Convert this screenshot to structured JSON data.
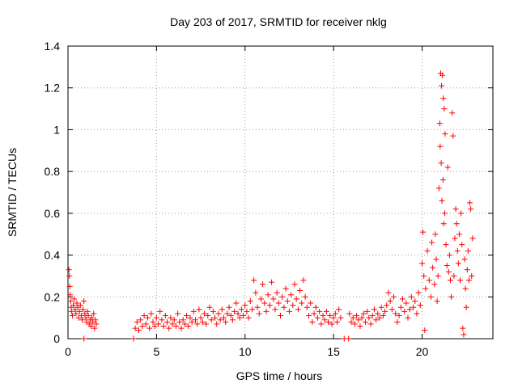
{
  "chart_data": {
    "type": "scatter",
    "title": "Day 203 of 2017, SRMTID for receiver nklg",
    "xlabel": "GPS time / hours",
    "ylabel": "SRMTID / TECUs",
    "xlim": [
      0,
      24
    ],
    "ylim": [
      0,
      1.4
    ],
    "xticks": [
      0,
      5,
      10,
      15,
      20
    ],
    "yticks": [
      0,
      0.2,
      0.4,
      0.6,
      0.8,
      1,
      1.2,
      1.4
    ],
    "xtick_labels": [
      "0",
      "5",
      "10",
      "15",
      "20"
    ],
    "ytick_labels": [
      "0",
      "0.2",
      "0.4",
      "0.6",
      "0.8",
      "1",
      "1.2",
      "1.4"
    ],
    "grid": true,
    "marker": "+",
    "color": "#ff0000",
    "series": [
      {
        "name": "SRMTID",
        "points": [
          [
            0.05,
            0.33
          ],
          [
            0.08,
            0.3
          ],
          [
            0.1,
            0.25
          ],
          [
            0.12,
            0.21
          ],
          [
            0.15,
            0.18
          ],
          [
            0.18,
            0.15
          ],
          [
            0.2,
            0.13
          ],
          [
            0.25,
            0.11
          ],
          [
            0.3,
            0.16
          ],
          [
            0.35,
            0.19
          ],
          [
            0.4,
            0.14
          ],
          [
            0.45,
            0.12
          ],
          [
            0.5,
            0.17
          ],
          [
            0.55,
            0.15
          ],
          [
            0.6,
            0.1
          ],
          [
            0.65,
            0.13
          ],
          [
            0.7,
            0.16
          ],
          [
            0.75,
            0.11
          ],
          [
            0.8,
            0.09
          ],
          [
            0.85,
            0.14
          ],
          [
            0.9,
            0.18
          ],
          [
            0.95,
            0.12
          ],
          [
            1.0,
            0.1
          ],
          [
            1.05,
            0.08
          ],
          [
            1.1,
            0.13
          ],
          [
            1.15,
            0.11
          ],
          [
            1.2,
            0.07
          ],
          [
            1.25,
            0.09
          ],
          [
            1.3,
            0.06
          ],
          [
            1.35,
            0.1
          ],
          [
            1.4,
            0.08
          ],
          [
            1.45,
            0.12
          ],
          [
            1.5,
            0.05
          ],
          [
            1.55,
            0.09
          ],
          [
            1.6,
            0.07
          ],
          [
            0.9,
            0.0
          ],
          [
            3.7,
            0.0
          ],
          [
            15.6,
            0.0
          ],
          [
            15.85,
            0.0
          ],
          [
            3.8,
            0.05
          ],
          [
            3.9,
            0.08
          ],
          [
            4.0,
            0.04
          ],
          [
            4.1,
            0.09
          ],
          [
            4.2,
            0.06
          ],
          [
            4.3,
            0.11
          ],
          [
            4.4,
            0.07
          ],
          [
            4.5,
            0.1
          ],
          [
            4.6,
            0.05
          ],
          [
            4.7,
            0.12
          ],
          [
            4.8,
            0.08
          ],
          [
            4.9,
            0.06
          ],
          [
            5.0,
            0.1
          ],
          [
            5.1,
            0.07
          ],
          [
            5.2,
            0.13
          ],
          [
            5.3,
            0.09
          ],
          [
            5.4,
            0.06
          ],
          [
            5.5,
            0.11
          ],
          [
            5.6,
            0.08
          ],
          [
            5.7,
            0.05
          ],
          [
            5.8,
            0.1
          ],
          [
            5.9,
            0.07
          ],
          [
            6.0,
            0.09
          ],
          [
            6.1,
            0.06
          ],
          [
            6.2,
            0.12
          ],
          [
            6.3,
            0.08
          ],
          [
            6.4,
            0.05
          ],
          [
            6.5,
            0.09
          ],
          [
            6.6,
            0.07
          ],
          [
            6.7,
            0.11
          ],
          [
            6.8,
            0.06
          ],
          [
            6.9,
            0.1
          ],
          [
            7.0,
            0.08
          ],
          [
            7.1,
            0.13
          ],
          [
            7.2,
            0.09
          ],
          [
            7.3,
            0.07
          ],
          [
            7.4,
            0.14
          ],
          [
            7.5,
            0.1
          ],
          [
            7.6,
            0.08
          ],
          [
            7.7,
            0.12
          ],
          [
            7.8,
            0.07
          ],
          [
            7.9,
            0.11
          ],
          [
            8.0,
            0.15
          ],
          [
            8.1,
            0.09
          ],
          [
            8.2,
            0.13
          ],
          [
            8.3,
            0.1
          ],
          [
            8.4,
            0.07
          ],
          [
            8.5,
            0.12
          ],
          [
            8.6,
            0.09
          ],
          [
            8.7,
            0.14
          ],
          [
            8.8,
            0.1
          ],
          [
            8.9,
            0.08
          ],
          [
            9.0,
            0.12
          ],
          [
            9.1,
            0.15
          ],
          [
            9.2,
            0.11
          ],
          [
            9.3,
            0.09
          ],
          [
            9.4,
            0.13
          ],
          [
            9.5,
            0.17
          ],
          [
            9.6,
            0.12
          ],
          [
            9.7,
            0.1
          ],
          [
            9.8,
            0.14
          ],
          [
            9.9,
            0.11
          ],
          [
            10.0,
            0.16
          ],
          [
            10.1,
            0.13
          ],
          [
            10.2,
            0.1
          ],
          [
            10.3,
            0.18
          ],
          [
            10.4,
            0.14
          ],
          [
            10.5,
            0.28
          ],
          [
            10.6,
            0.22
          ],
          [
            10.7,
            0.15
          ],
          [
            10.8,
            0.12
          ],
          [
            10.9,
            0.19
          ],
          [
            11.0,
            0.26
          ],
          [
            11.1,
            0.17
          ],
          [
            11.2,
            0.13
          ],
          [
            11.3,
            0.21
          ],
          [
            11.4,
            0.16
          ],
          [
            11.5,
            0.27
          ],
          [
            11.6,
            0.19
          ],
          [
            11.7,
            0.14
          ],
          [
            11.8,
            0.22
          ],
          [
            11.9,
            0.17
          ],
          [
            12.0,
            0.11
          ],
          [
            12.1,
            0.2
          ],
          [
            12.2,
            0.15
          ],
          [
            12.3,
            0.24
          ],
          [
            12.4,
            0.18
          ],
          [
            12.5,
            0.13
          ],
          [
            12.6,
            0.21
          ],
          [
            12.7,
            0.16
          ],
          [
            12.8,
            0.26
          ],
          [
            12.9,
            0.19
          ],
          [
            13.0,
            0.14
          ],
          [
            13.1,
            0.23
          ],
          [
            13.2,
            0.17
          ],
          [
            13.3,
            0.28
          ],
          [
            13.4,
            0.2
          ],
          [
            13.5,
            0.15
          ],
          [
            13.6,
            0.11
          ],
          [
            13.7,
            0.17
          ],
          [
            13.8,
            0.08
          ],
          [
            13.9,
            0.12
          ],
          [
            14.0,
            0.15
          ],
          [
            14.1,
            0.1
          ],
          [
            14.2,
            0.13
          ],
          [
            14.3,
            0.07
          ],
          [
            14.4,
            0.11
          ],
          [
            14.5,
            0.09
          ],
          [
            14.6,
            0.13
          ],
          [
            14.7,
            0.08
          ],
          [
            14.8,
            0.11
          ],
          [
            14.9,
            0.07
          ],
          [
            15.0,
            0.1
          ],
          [
            15.1,
            0.12
          ],
          [
            15.2,
            0.08
          ],
          [
            15.3,
            0.14
          ],
          [
            15.4,
            0.1
          ],
          [
            15.9,
            0.12
          ],
          [
            16.0,
            0.08
          ],
          [
            16.1,
            0.1
          ],
          [
            16.2,
            0.07
          ],
          [
            16.3,
            0.11
          ],
          [
            16.4,
            0.09
          ],
          [
            16.5,
            0.06
          ],
          [
            16.6,
            0.1
          ],
          [
            16.7,
            0.12
          ],
          [
            16.8,
            0.08
          ],
          [
            16.9,
            0.13
          ],
          [
            17.0,
            0.1
          ],
          [
            17.1,
            0.07
          ],
          [
            17.2,
            0.11
          ],
          [
            17.3,
            0.14
          ],
          [
            17.4,
            0.09
          ],
          [
            17.5,
            0.12
          ],
          [
            17.6,
            0.1
          ],
          [
            17.7,
            0.15
          ],
          [
            17.8,
            0.11
          ],
          [
            17.9,
            0.13
          ],
          [
            18.0,
            0.16
          ],
          [
            18.1,
            0.22
          ],
          [
            18.2,
            0.18
          ],
          [
            18.3,
            0.14
          ],
          [
            18.4,
            0.2
          ],
          [
            18.5,
            0.12
          ],
          [
            18.6,
            0.08
          ],
          [
            18.7,
            0.11
          ],
          [
            18.8,
            0.15
          ],
          [
            18.9,
            0.19
          ],
          [
            19.0,
            0.13
          ],
          [
            19.1,
            0.17
          ],
          [
            19.2,
            0.1
          ],
          [
            19.3,
            0.14
          ],
          [
            19.4,
            0.2
          ],
          [
            19.5,
            0.15
          ],
          [
            19.6,
            0.18
          ],
          [
            19.7,
            0.12
          ],
          [
            19.8,
            0.22
          ],
          [
            19.9,
            0.16
          ],
          [
            20.0,
            0.36
          ],
          [
            20.05,
            0.51
          ],
          [
            20.1,
            0.3
          ],
          [
            20.15,
            0.04
          ],
          [
            20.2,
            0.24
          ],
          [
            20.3,
            0.42
          ],
          [
            20.4,
            0.28
          ],
          [
            20.5,
            0.2
          ],
          [
            20.55,
            0.46
          ],
          [
            20.6,
            0.34
          ],
          [
            20.7,
            0.26
          ],
          [
            20.75,
            0.5
          ],
          [
            20.8,
            0.38
          ],
          [
            20.85,
            0.18
          ],
          [
            20.9,
            0.3
          ],
          [
            20.95,
            0.72
          ],
          [
            21.0,
            1.03
          ],
          [
            21.02,
            0.92
          ],
          [
            21.05,
            1.27
          ],
          [
            21.08,
            0.84
          ],
          [
            21.1,
            1.21
          ],
          [
            21.12,
            0.66
          ],
          [
            21.15,
            1.26
          ],
          [
            21.18,
            0.76
          ],
          [
            21.2,
            1.15
          ],
          [
            21.22,
            0.55
          ],
          [
            21.25,
            1.1
          ],
          [
            21.28,
            0.6
          ],
          [
            21.3,
            0.98
          ],
          [
            21.35,
            0.45
          ],
          [
            21.4,
            0.35
          ],
          [
            21.45,
            0.82
          ],
          [
            21.5,
            0.32
          ],
          [
            21.55,
            0.4
          ],
          [
            21.6,
            0.28
          ],
          [
            21.65,
            0.2
          ],
          [
            21.7,
            1.08
          ],
          [
            21.75,
            0.97
          ],
          [
            21.8,
            0.3
          ],
          [
            21.85,
            0.48
          ],
          [
            21.9,
            0.62
          ],
          [
            21.95,
            0.55
          ],
          [
            22.0,
            0.42
          ],
          [
            22.05,
            0.36
          ],
          [
            22.1,
            0.5
          ],
          [
            22.15,
            0.28
          ],
          [
            22.2,
            0.6
          ],
          [
            22.25,
            0.45
          ],
          [
            22.3,
            0.05
          ],
          [
            22.35,
            0.02
          ],
          [
            22.4,
            0.38
          ],
          [
            22.45,
            0.24
          ],
          [
            22.5,
            0.15
          ],
          [
            22.55,
            0.33
          ],
          [
            22.6,
            0.42
          ],
          [
            22.65,
            0.28
          ],
          [
            22.7,
            0.65
          ],
          [
            22.75,
            0.62
          ],
          [
            22.8,
            0.3
          ],
          [
            22.85,
            0.48
          ]
        ]
      }
    ]
  }
}
